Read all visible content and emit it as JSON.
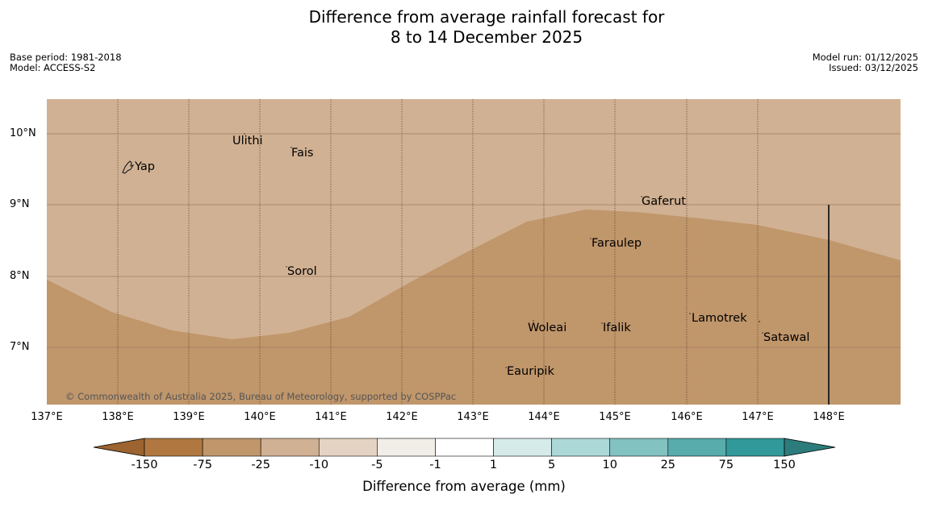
{
  "title": {
    "line1": "Difference from average rainfall forecast for",
    "line2": "8 to 14 December 2025"
  },
  "meta": {
    "base_period": "Base period: 1981-2018",
    "model": "Model: ACCESS-S2",
    "model_run": "Model run: 01/12/2025",
    "issued": "Issued: 03/12/2025"
  },
  "map": {
    "lat_labels": [
      "10°N",
      "9°N",
      "8°N",
      "7°N"
    ],
    "lon_labels": [
      "137°E",
      "138°E",
      "139°E",
      "140°E",
      "141°E",
      "142°E",
      "143°E",
      "144°E",
      "145°E",
      "146°E",
      "147°E",
      "148°E"
    ],
    "places": [
      "Yap",
      "Ulithi",
      "Fais",
      "Gaferut",
      "Faraulep",
      "Sorol",
      "Lamotrek",
      "Woleai",
      "Ifalik",
      "Satawal",
      "Eauripik"
    ],
    "copyright": "© Commonwealth of Australia 2025, Bureau of Meteorology, supported by COSPPac",
    "colors": {
      "light": "#d1b193",
      "dark": "#c0966b"
    }
  },
  "colorbar": {
    "title": "Difference from average (mm)",
    "ticks": [
      "-150",
      "-75",
      "-25",
      "-10",
      "-5",
      "-1",
      "1",
      "5",
      "10",
      "25",
      "75",
      "150"
    ],
    "colors": [
      "#9c6430",
      "#b07840",
      "#c0966b",
      "#d1b193",
      "#e4d3c3",
      "#f1ede7",
      "#ffffff",
      "#d5ebea",
      "#acd8d8",
      "#82c2c1",
      "#58acac",
      "#32999a",
      "#2d7c7c"
    ]
  }
}
